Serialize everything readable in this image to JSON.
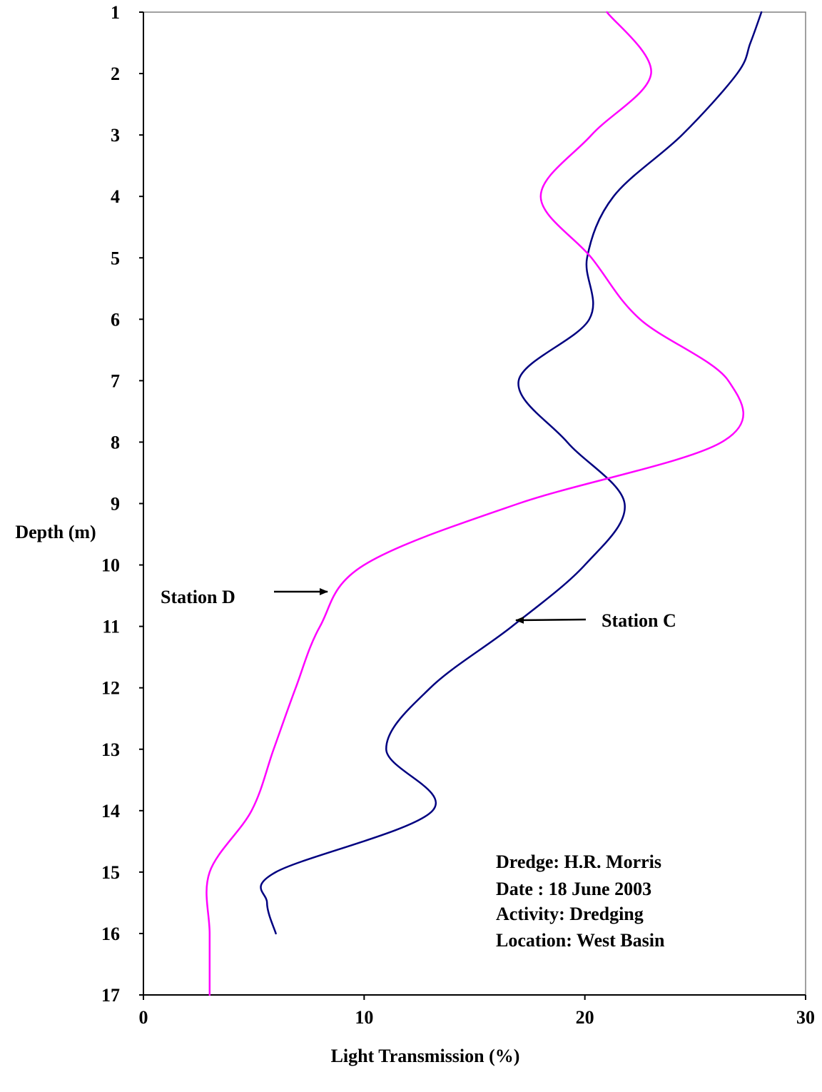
{
  "chart_data": {
    "type": "line",
    "title": "",
    "xlabel": "Light Transmission (%)",
    "ylabel": "Depth (m)",
    "xlim": [
      0,
      30
    ],
    "ylim": [
      17,
      1
    ],
    "y_inverted": true,
    "x_ticks": [
      "0",
      "10",
      "20",
      "30"
    ],
    "y_ticks": [
      "1",
      "2",
      "3",
      "4",
      "5",
      "6",
      "7",
      "8",
      "9",
      "10",
      "11",
      "12",
      "13",
      "14",
      "15",
      "16",
      "17"
    ],
    "grid": false,
    "legend": "none",
    "series": [
      {
        "name": "Station C",
        "color": "#000080",
        "points": [
          [
            28.0,
            1.0
          ],
          [
            27.5,
            1.5
          ],
          [
            26.9,
            2.0
          ],
          [
            24.4,
            3.0
          ],
          [
            21.3,
            4.0
          ],
          [
            20.1,
            5.0
          ],
          [
            20.2,
            6.0
          ],
          [
            17.0,
            7.0
          ],
          [
            19.2,
            8.0
          ],
          [
            21.8,
            9.0
          ],
          [
            20.0,
            10.0
          ],
          [
            16.7,
            11.0
          ],
          [
            13.0,
            12.0
          ],
          [
            11.0,
            13.0
          ],
          [
            13.1,
            14.0
          ],
          [
            6.0,
            15.0
          ],
          [
            5.6,
            15.5
          ],
          [
            6.0,
            16.0
          ]
        ]
      },
      {
        "name": "Station D",
        "color": "#ff00ff",
        "points": [
          [
            21.0,
            1.0
          ],
          [
            23.0,
            2.0
          ],
          [
            20.3,
            3.0
          ],
          [
            18.0,
            4.0
          ],
          [
            20.3,
            5.0
          ],
          [
            22.5,
            6.0
          ],
          [
            26.5,
            7.0
          ],
          [
            26.2,
            8.0
          ],
          [
            17.0,
            9.0
          ],
          [
            10.0,
            10.0
          ],
          [
            8.0,
            11.0
          ],
          [
            6.9,
            12.0
          ],
          [
            5.9,
            13.0
          ],
          [
            4.9,
            14.0
          ],
          [
            3.0,
            15.0
          ],
          [
            3.0,
            16.0
          ],
          [
            3.0,
            17.0
          ]
        ]
      }
    ],
    "annotations": [
      {
        "text": "Station D",
        "series": "Station D"
      },
      {
        "text": "Station C",
        "series": "Station C"
      }
    ],
    "notes": [
      "Dredge: H.R. Morris",
      "Date : 18 June 2003",
      "Activity: Dredging",
      "Location: West Basin"
    ]
  }
}
